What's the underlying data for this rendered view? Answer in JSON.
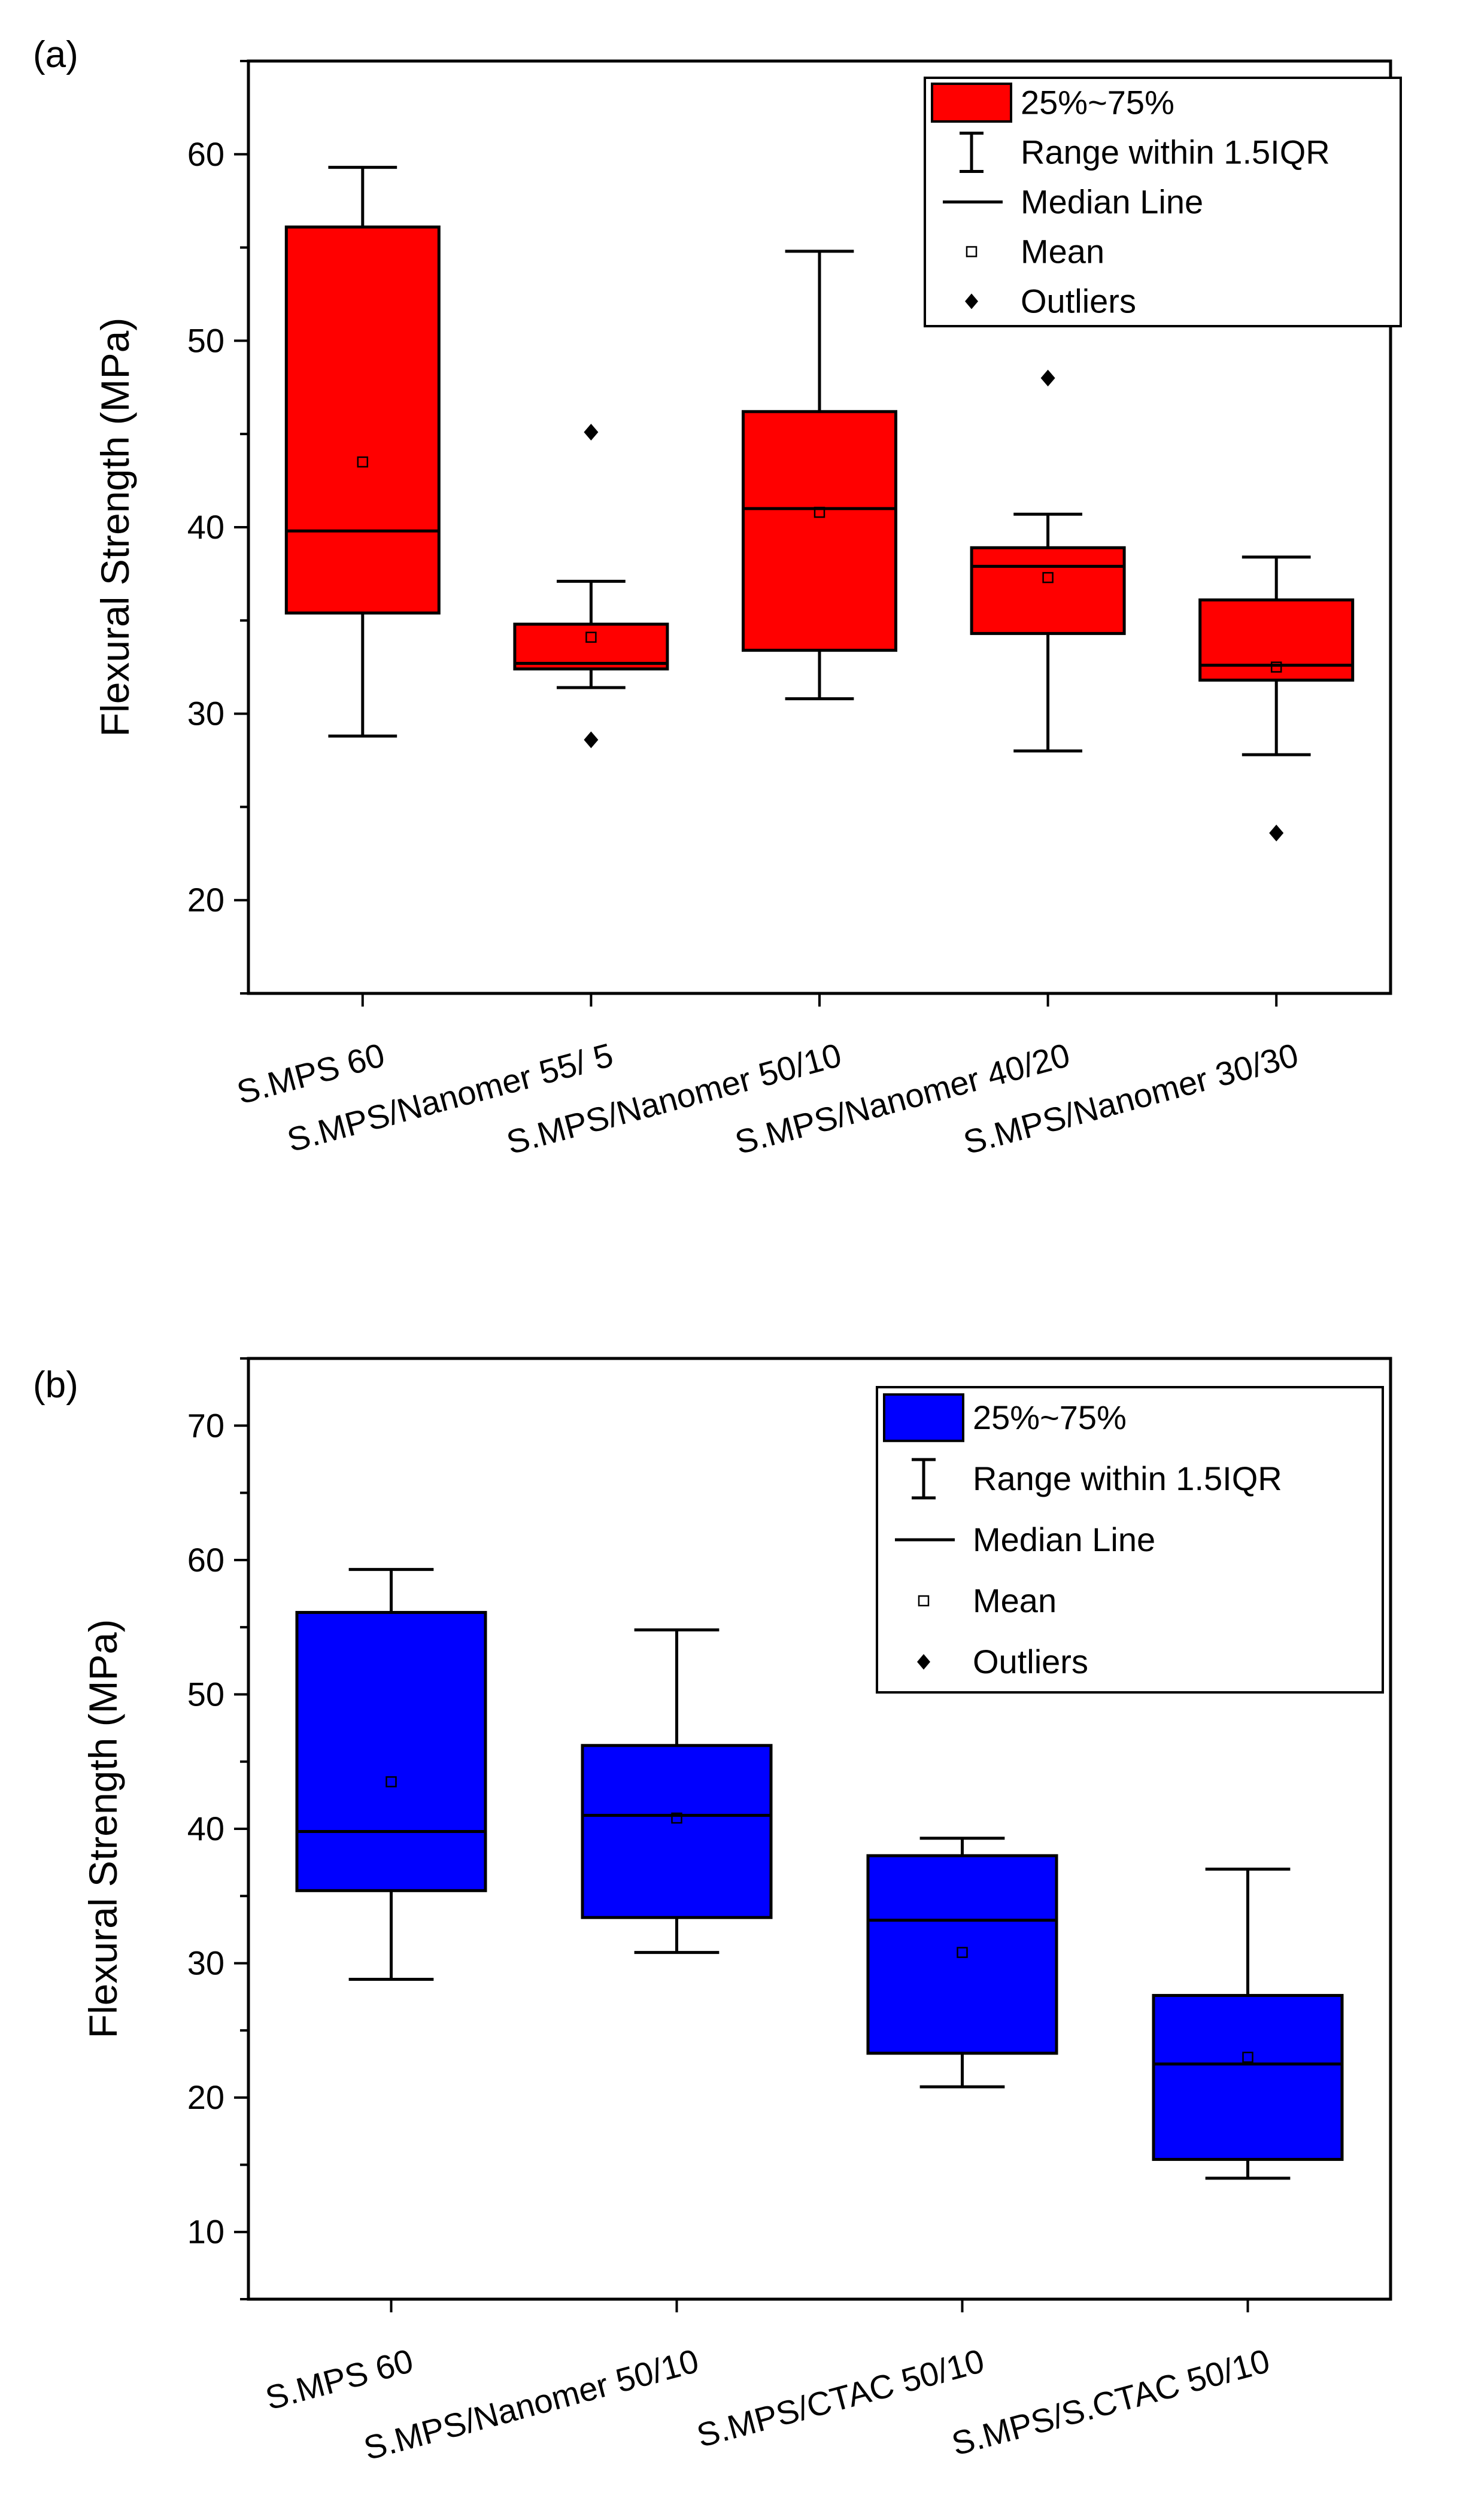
{
  "chart_data": [
    {
      "panel_label": "(a)",
      "type": "box",
      "ylabel": "Flexural Strength (MPa)",
      "xlabel": "",
      "ylim": [
        15,
        65
      ],
      "yticks": [
        20,
        30,
        40,
        50,
        60
      ],
      "box_color": "#ff0000",
      "categories": [
        "S.MPS 60",
        "S.MPS/Nanomer 55/ 5",
        "S.MPS/Nanomer 50/10",
        "S.MPS/Nanomer  40/20",
        "S.MPS/Nanomer 30/30"
      ],
      "boxes": [
        {
          "whisker_low": 28.8,
          "q1": 35.4,
          "median": 39.8,
          "q3": 56.1,
          "whisker_high": 59.3,
          "mean": 43.5,
          "outliers": []
        },
        {
          "whisker_low": 31.4,
          "q1": 32.4,
          "median": 32.7,
          "q3": 34.8,
          "whisker_high": 37.1,
          "mean": 34.1,
          "outliers": [
            45.1,
            28.6
          ]
        },
        {
          "whisker_low": 30.8,
          "q1": 33.4,
          "median": 41.0,
          "q3": 46.2,
          "whisker_high": 54.8,
          "mean": 40.8,
          "outliers": []
        },
        {
          "whisker_low": 28.0,
          "q1": 34.3,
          "median": 37.9,
          "q3": 38.9,
          "whisker_high": 40.7,
          "mean": 37.3,
          "outliers": [
            48.0
          ]
        },
        {
          "whisker_low": 27.8,
          "q1": 31.8,
          "median": 32.6,
          "q3": 36.1,
          "whisker_high": 38.4,
          "mean": 32.5,
          "outliers": [
            23.6
          ]
        }
      ],
      "legend": {
        "position": "top-right",
        "box": "25%~75%",
        "range": "Range within 1.5IQR",
        "median": "Median Line",
        "mean": "Mean",
        "outliers": "Outliers"
      }
    },
    {
      "panel_label": "(b)",
      "type": "box",
      "ylabel": "Flexural Strength (MPa)",
      "xlabel": "",
      "ylim": [
        5,
        75
      ],
      "yticks": [
        10,
        20,
        30,
        40,
        50,
        60,
        70
      ],
      "box_color": "#0000ff",
      "categories": [
        "S.MPS 60",
        "S.MPS/Nanomer 50/10",
        "S.MPS/CTAC 50/10",
        "S.MPS/S.CTAC 50/10"
      ],
      "boxes": [
        {
          "whisker_low": 28.8,
          "q1": 35.4,
          "median": 39.8,
          "q3": 56.1,
          "whisker_high": 59.3,
          "mean": 43.5,
          "outliers": []
        },
        {
          "whisker_low": 30.8,
          "q1": 33.4,
          "median": 41.0,
          "q3": 46.2,
          "whisker_high": 54.8,
          "mean": 40.8,
          "outliers": []
        },
        {
          "whisker_low": 20.8,
          "q1": 23.3,
          "median": 33.2,
          "q3": 38.0,
          "whisker_high": 39.3,
          "mean": 30.8,
          "outliers": []
        },
        {
          "whisker_low": 14.0,
          "q1": 15.4,
          "median": 22.5,
          "q3": 27.6,
          "whisker_high": 37.0,
          "mean": 23.0,
          "outliers": []
        }
      ],
      "legend": {
        "position": "top-right",
        "box": "25%~75%",
        "range": "Range within 1.5IQR",
        "median": "Median Line",
        "mean": "Mean",
        "outliers": "Outliers"
      }
    }
  ]
}
